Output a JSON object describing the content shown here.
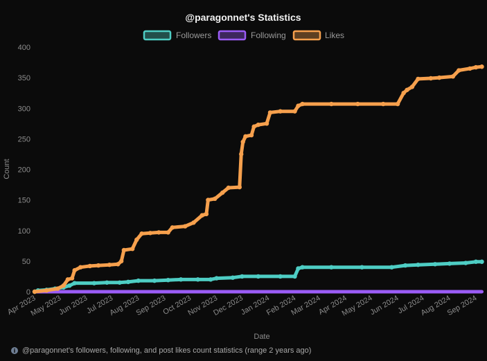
{
  "colors": {
    "followers": "#4ecdc4",
    "following": "#9b5cf6",
    "likes": "#f6a04d",
    "grid": "#2a2a2a",
    "zero_line": "#5a5a5a"
  },
  "footer": {
    "icon": "info-icon",
    "text": "@paragonnet's followers, following, and post likes count statistics (range 2 years ago)"
  },
  "chart_data": {
    "type": "line",
    "title": "@paragonnet's Statistics",
    "xlabel": "Date",
    "ylabel": "Count",
    "ylim": [
      0,
      400
    ],
    "yticks": [
      0,
      50,
      100,
      150,
      200,
      250,
      300,
      350,
      400
    ],
    "xlim": [
      "2023-04-01",
      "2024-09-10"
    ],
    "xticks": [
      {
        "date": "2023-04-01",
        "label": "Apr 2023"
      },
      {
        "date": "2023-05-01",
        "label": "May 2023"
      },
      {
        "date": "2023-06-01",
        "label": "Jun 2023"
      },
      {
        "date": "2023-07-01",
        "label": "Jul 2023"
      },
      {
        "date": "2023-08-01",
        "label": "Aug 2023"
      },
      {
        "date": "2023-09-01",
        "label": "Sep 2023"
      },
      {
        "date": "2023-10-01",
        "label": "Oct 2023"
      },
      {
        "date": "2023-11-01",
        "label": "Nov 2023"
      },
      {
        "date": "2023-12-01",
        "label": "Dec 2023"
      },
      {
        "date": "2024-01-01",
        "label": "Jan 2024"
      },
      {
        "date": "2024-02-01",
        "label": "Feb 2024"
      },
      {
        "date": "2024-03-01",
        "label": "Mar 2024"
      },
      {
        "date": "2024-04-01",
        "label": "Apr 2024"
      },
      {
        "date": "2024-05-01",
        "label": "May 2024"
      },
      {
        "date": "2024-06-01",
        "label": "Jun 2024"
      },
      {
        "date": "2024-07-01",
        "label": "Jul 2024"
      },
      {
        "date": "2024-08-01",
        "label": "Aug 2024"
      },
      {
        "date": "2024-09-01",
        "label": "Sep 2024"
      }
    ],
    "grid": false,
    "legend_position": "top-center",
    "series": [
      {
        "name": "Followers",
        "color_key": "followers",
        "points": [
          [
            "2023-04-01",
            0
          ],
          [
            "2023-04-05",
            2
          ],
          [
            "2023-04-15",
            3
          ],
          [
            "2023-04-25",
            5
          ],
          [
            "2023-05-05",
            7
          ],
          [
            "2023-05-12",
            10
          ],
          [
            "2023-05-18",
            14
          ],
          [
            "2023-06-10",
            14
          ],
          [
            "2023-06-25",
            15
          ],
          [
            "2023-07-10",
            15
          ],
          [
            "2023-07-20",
            16
          ],
          [
            "2023-08-01",
            18
          ],
          [
            "2023-08-20",
            18
          ],
          [
            "2023-09-05",
            19
          ],
          [
            "2023-09-20",
            20
          ],
          [
            "2023-10-10",
            20
          ],
          [
            "2023-10-25",
            20
          ],
          [
            "2023-11-01",
            22
          ],
          [
            "2023-11-20",
            23
          ],
          [
            "2023-12-01",
            25
          ],
          [
            "2023-12-20",
            25
          ],
          [
            "2024-01-15",
            25
          ],
          [
            "2024-02-01",
            25
          ],
          [
            "2024-02-05",
            38
          ],
          [
            "2024-02-10",
            40
          ],
          [
            "2024-03-15",
            40
          ],
          [
            "2024-04-20",
            40
          ],
          [
            "2024-05-25",
            40
          ],
          [
            "2024-06-10",
            43
          ],
          [
            "2024-06-25",
            44
          ],
          [
            "2024-07-15",
            45
          ],
          [
            "2024-08-01",
            46
          ],
          [
            "2024-08-20",
            47
          ],
          [
            "2024-09-01",
            49
          ],
          [
            "2024-09-08",
            49
          ]
        ]
      },
      {
        "name": "Following",
        "color_key": "following",
        "points": [
          [
            "2023-04-01",
            0
          ],
          [
            "2024-09-08",
            0
          ]
        ]
      },
      {
        "name": "Likes",
        "color_key": "likes",
        "points": [
          [
            "2023-04-01",
            0
          ],
          [
            "2023-04-15",
            2
          ],
          [
            "2023-04-28",
            5
          ],
          [
            "2023-05-05",
            10
          ],
          [
            "2023-05-10",
            20
          ],
          [
            "2023-05-15",
            22
          ],
          [
            "2023-05-18",
            35
          ],
          [
            "2023-05-25",
            40
          ],
          [
            "2023-06-05",
            42
          ],
          [
            "2023-06-15",
            43
          ],
          [
            "2023-06-28",
            44
          ],
          [
            "2023-07-08",
            45
          ],
          [
            "2023-07-12",
            50
          ],
          [
            "2023-07-15",
            68
          ],
          [
            "2023-07-25",
            70
          ],
          [
            "2023-07-30",
            85
          ],
          [
            "2023-08-05",
            95
          ],
          [
            "2023-08-15",
            96
          ],
          [
            "2023-08-25",
            97
          ],
          [
            "2023-09-05",
            97
          ],
          [
            "2023-09-10",
            105
          ],
          [
            "2023-09-25",
            107
          ],
          [
            "2023-10-05",
            113
          ],
          [
            "2023-10-15",
            125
          ],
          [
            "2023-10-20",
            127
          ],
          [
            "2023-10-22",
            150
          ],
          [
            "2023-10-30",
            152
          ],
          [
            "2023-11-08",
            162
          ],
          [
            "2023-11-15",
            170
          ],
          [
            "2023-11-28",
            171
          ],
          [
            "2023-11-30",
            225
          ],
          [
            "2023-12-02",
            245
          ],
          [
            "2023-12-05",
            254
          ],
          [
            "2023-12-12",
            256
          ],
          [
            "2023-12-15",
            270
          ],
          [
            "2023-12-20",
            273
          ],
          [
            "2023-12-30",
            275
          ],
          [
            "2024-01-03",
            293
          ],
          [
            "2024-01-15",
            295
          ],
          [
            "2024-02-01",
            295
          ],
          [
            "2024-02-05",
            304
          ],
          [
            "2024-02-10",
            307
          ],
          [
            "2024-03-15",
            307
          ],
          [
            "2024-04-15",
            307
          ],
          [
            "2024-05-15",
            307
          ],
          [
            "2024-06-01",
            307
          ],
          [
            "2024-06-08",
            325
          ],
          [
            "2024-06-12",
            330
          ],
          [
            "2024-06-18",
            335
          ],
          [
            "2024-06-25",
            348
          ],
          [
            "2024-07-10",
            349
          ],
          [
            "2024-07-20",
            350
          ],
          [
            "2024-08-05",
            352
          ],
          [
            "2024-08-12",
            362
          ],
          [
            "2024-08-25",
            365
          ],
          [
            "2024-09-01",
            367
          ],
          [
            "2024-09-08",
            368
          ]
        ]
      }
    ]
  }
}
